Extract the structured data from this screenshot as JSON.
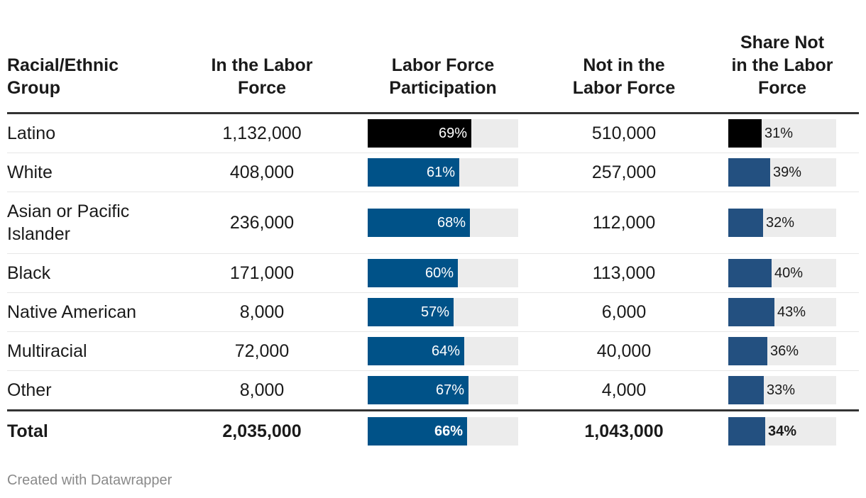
{
  "colors": {
    "highlight": "#000000",
    "lfp_bar": "#005288",
    "share_bar": "#235080",
    "track": "#ececec"
  },
  "headers": {
    "group": [
      "Racial/Ethnic",
      "Group"
    ],
    "in_lf": [
      "In the Labor",
      "Force"
    ],
    "lfp": [
      "Labor Force",
      "Participation"
    ],
    "not_lf": [
      "Not in the",
      "Labor Force"
    ],
    "share": [
      "Share Not",
      "in the Labor",
      "Force"
    ]
  },
  "chart_data": {
    "type": "table",
    "columns": [
      "Racial/Ethnic Group",
      "In the Labor Force",
      "Labor Force Participation",
      "Not in the Labor Force",
      "Share Not in the Labor Force"
    ],
    "rows": [
      {
        "group": [
          "Latino"
        ],
        "in_lf": "1,132,000",
        "lfp": 69,
        "lfp_label": "69%",
        "not_lf": "510,000",
        "share": 31,
        "share_label": "31%",
        "highlight": true
      },
      {
        "group": [
          "White"
        ],
        "in_lf": "408,000",
        "lfp": 61,
        "lfp_label": "61%",
        "not_lf": "257,000",
        "share": 39,
        "share_label": "39%"
      },
      {
        "group": [
          "Asian or Pacific",
          "Islander"
        ],
        "in_lf": "236,000",
        "lfp": 68,
        "lfp_label": "68%",
        "not_lf": "112,000",
        "share": 32,
        "share_label": "32%"
      },
      {
        "group": [
          "Black"
        ],
        "in_lf": "171,000",
        "lfp": 60,
        "lfp_label": "60%",
        "not_lf": "113,000",
        "share": 40,
        "share_label": "40%"
      },
      {
        "group": [
          "Native American"
        ],
        "in_lf": "8,000",
        "lfp": 57,
        "lfp_label": "57%",
        "not_lf": "6,000",
        "share": 43,
        "share_label": "43%"
      },
      {
        "group": [
          "Multiracial"
        ],
        "in_lf": "72,000",
        "lfp": 64,
        "lfp_label": "64%",
        "not_lf": "40,000",
        "share": 36,
        "share_label": "36%"
      },
      {
        "group": [
          "Other"
        ],
        "in_lf": "8,000",
        "lfp": 67,
        "lfp_label": "67%",
        "not_lf": "4,000",
        "share": 33,
        "share_label": "33%"
      }
    ],
    "total": {
      "group": [
        "Total"
      ],
      "in_lf": "2,035,000",
      "lfp": 66,
      "lfp_label": "66%",
      "not_lf": "1,043,000",
      "share": 34,
      "share_label": "34%"
    },
    "bar_scale": {
      "lfp_max": 100,
      "share_max": 100
    }
  },
  "footer": "Created with Datawrapper"
}
